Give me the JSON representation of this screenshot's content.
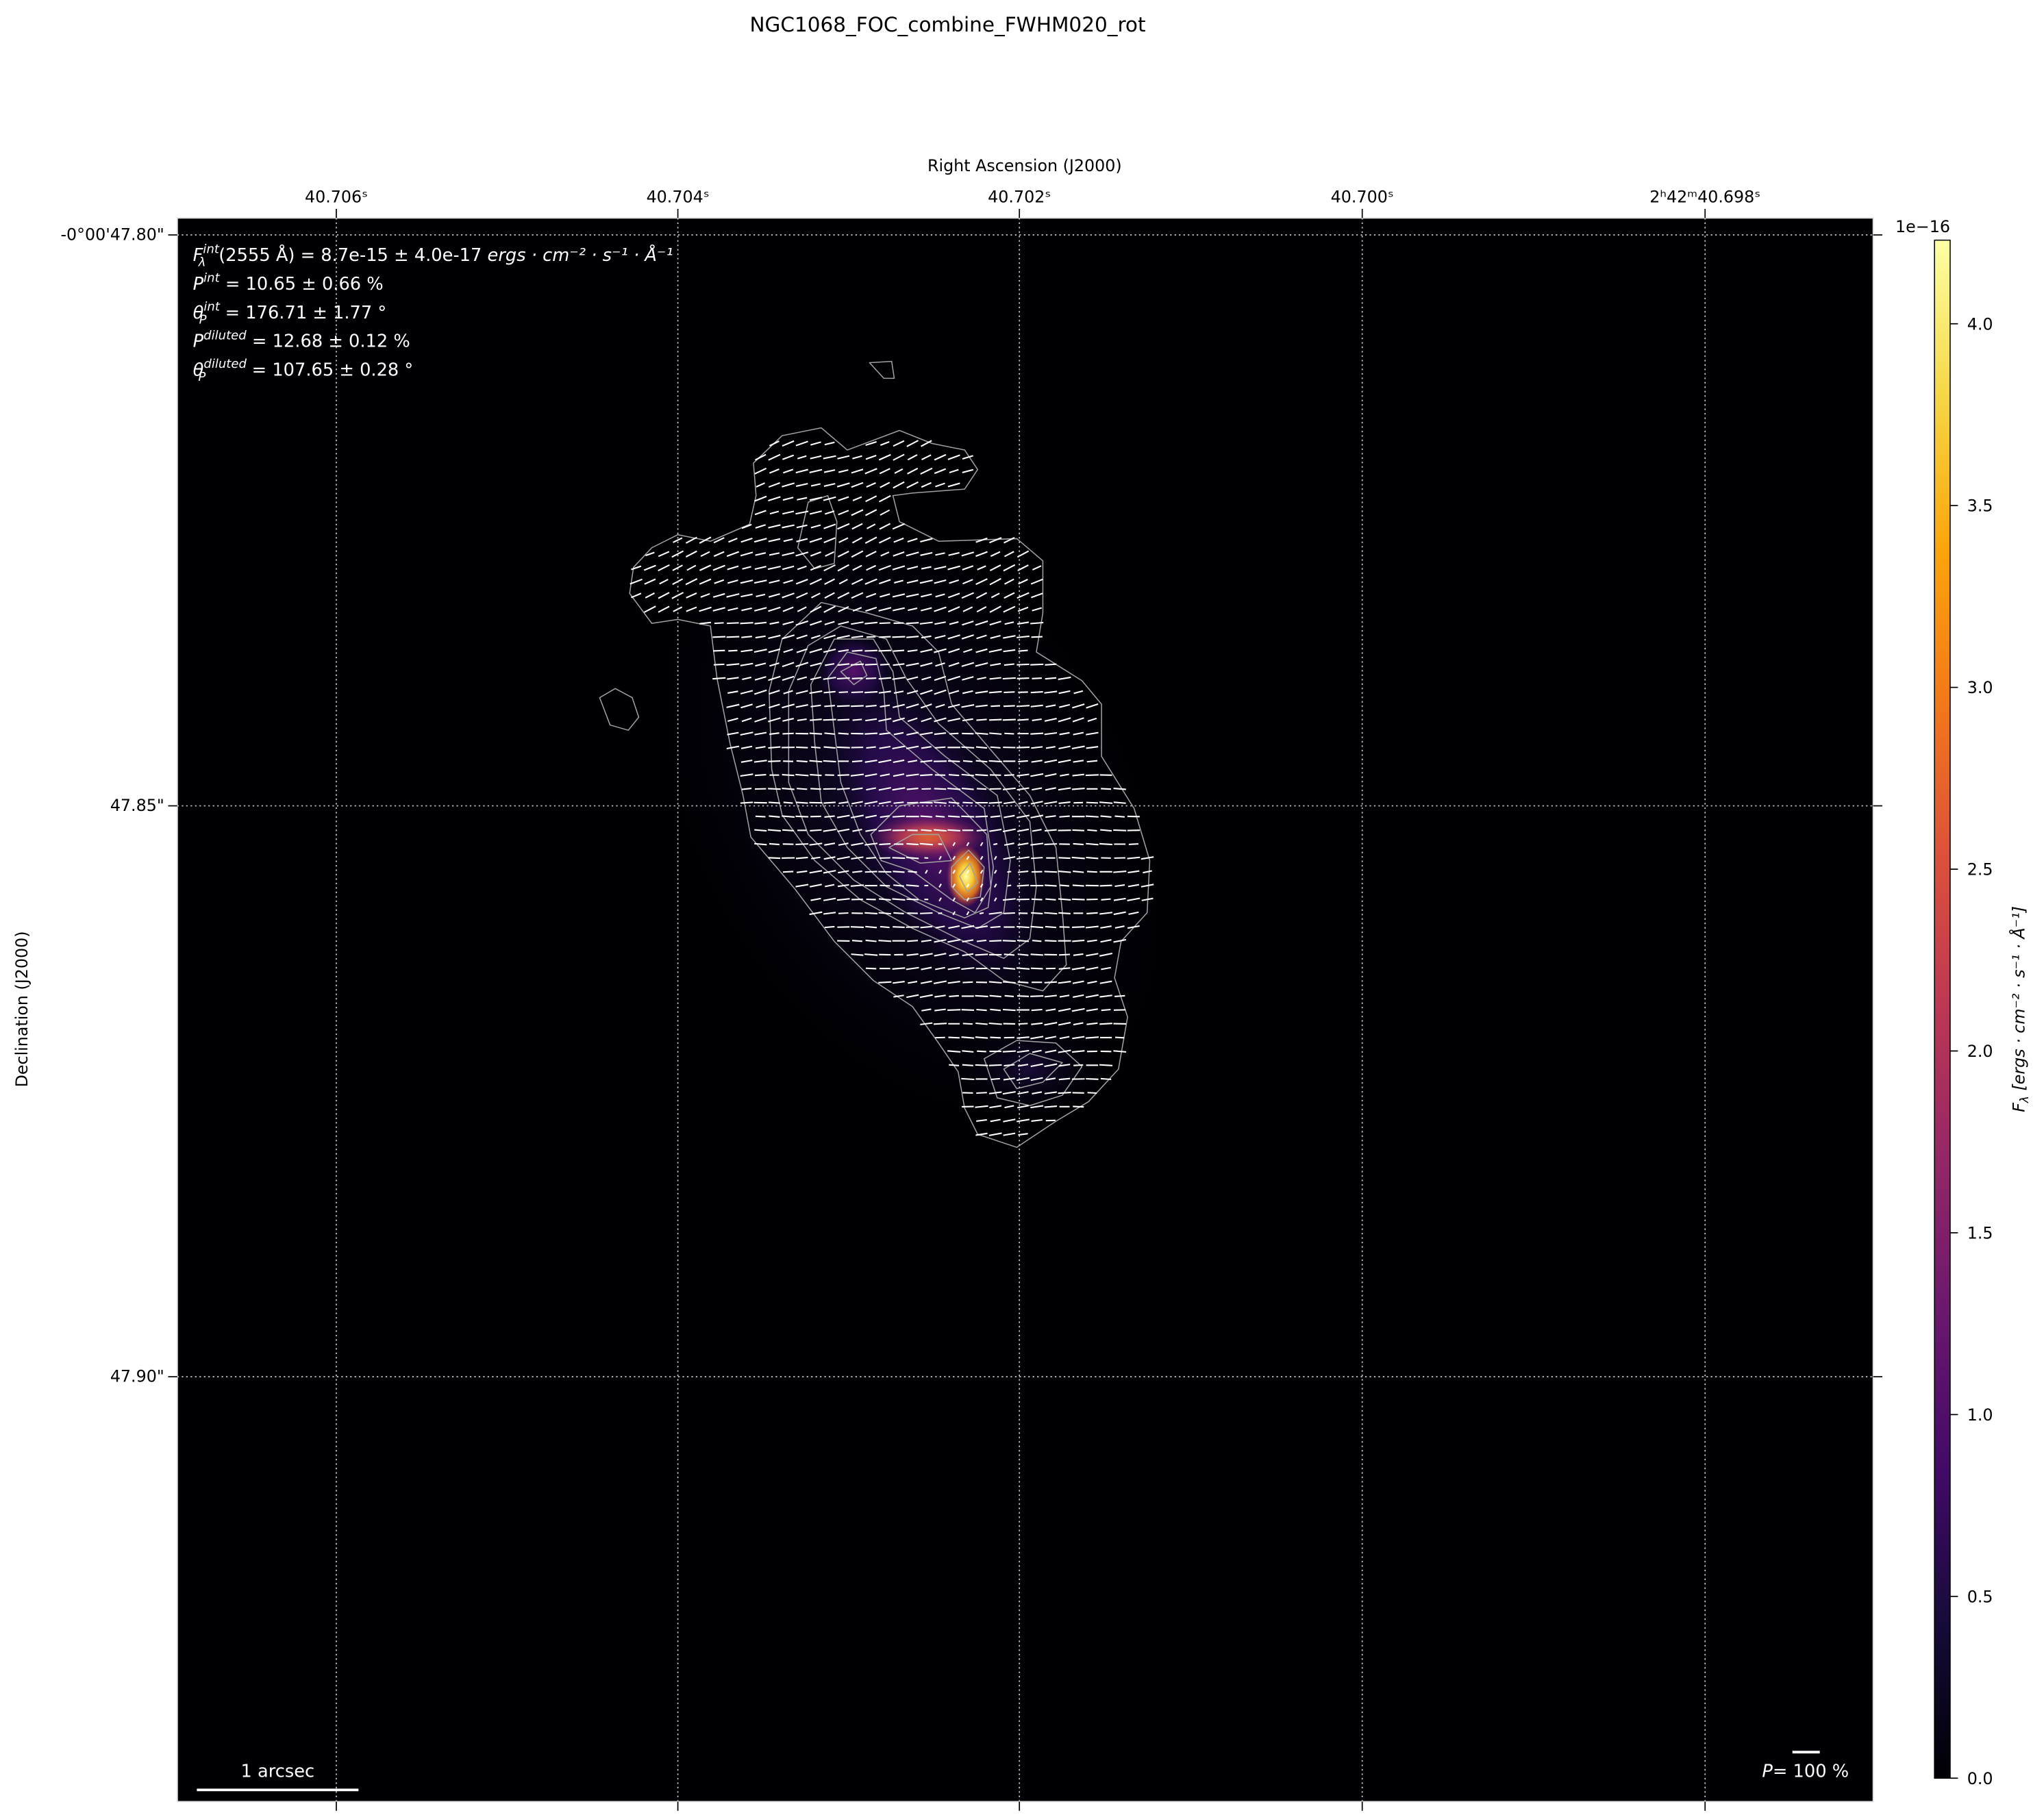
{
  "title": "NGC1068_FOC_combine_FWHM020_rot",
  "colors": {
    "background": "#000004",
    "vector": "#ffffff",
    "contour": "#a0a0a0",
    "grid": "#c8c8c8"
  },
  "chart_data": {
    "type": "heatmap",
    "colormap": "inferno",
    "xlabel": "Right Ascension (J2000)",
    "ylabel": "Declination (J2000)",
    "x_ticks": [
      "40.706ˢ",
      "40.704ˢ",
      "40.702ˢ",
      "40.700ˢ",
      "2ʰ42ᵐ40.698ˢ"
    ],
    "y_ticks": [
      "-0°00'47.80\"",
      "47.85\"",
      "47.90\""
    ],
    "grid": true,
    "overlays": [
      "intensity contours",
      "polarization vectors"
    ],
    "colorbar": {
      "label": "F_λ [ergs · cm⁻² · s⁻¹ · Å⁻¹]",
      "label_symbol": "F",
      "label_sub": "λ",
      "label_rest": " [ergs · cm⁻² · s⁻¹ · Å⁻¹]",
      "offset": "1e−16",
      "ticks": [
        "0.0",
        "0.5",
        "1.0",
        "1.5",
        "2.0",
        "2.5",
        "3.0",
        "3.5",
        "4.0"
      ],
      "tick_values": [
        0,
        0.5,
        1.0,
        1.5,
        2.0,
        2.5,
        3.0,
        3.5,
        4.0
      ],
      "range": [
        0,
        4.23
      ]
    },
    "annotations": [
      {
        "sym": "F",
        "sup": "int",
        "sub": "λ",
        "text": "(2555 Å) = 8.7e-15 ± 4.0e-17 ",
        "unit": "ergs · cm⁻² · s⁻¹ · Å⁻¹"
      },
      {
        "sym": "P",
        "sup": "int",
        "sub": "",
        "text": " = 10.65 ± 0.66 %",
        "unit": ""
      },
      {
        "sym": "θ",
        "sup": "int",
        "sub": "P",
        "text": " = 176.71 ± 1.77 °",
        "unit": ""
      },
      {
        "sym": "P",
        "sup": "diluted",
        "sub": "",
        "text": " = 12.68 ± 0.12 %",
        "unit": ""
      },
      {
        "sym": "θ",
        "sup": "diluted",
        "sub": "P",
        "text": " = 107.65 ± 0.28 °",
        "unit": ""
      }
    ],
    "scale_bar": "1 arcsec",
    "vector_scale": {
      "sym": "P",
      "text": "= 100 %"
    }
  }
}
